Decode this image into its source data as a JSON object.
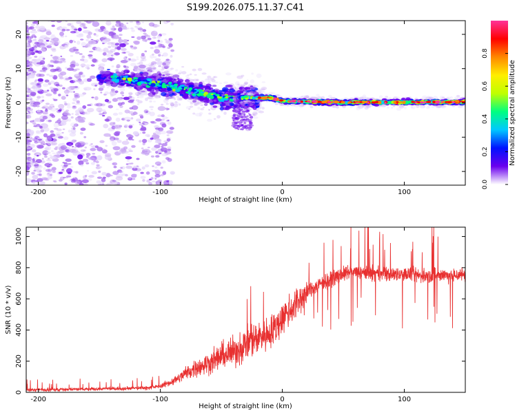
{
  "title": "S199.2026.075.11.37.C41",
  "colors": {
    "snr_line": "#e83030",
    "axis": "#000000",
    "colormap": [
      "#ffffff",
      "#e6d9fb",
      "#c9a6f3",
      "#9a55ec",
      "#6a00ee",
      "#0011ff",
      "#00c8ff",
      "#00ff80",
      "#bfff00",
      "#ffee00",
      "#ff8800",
      "#ff0000",
      "#ff3399"
    ]
  },
  "chart_data": [
    {
      "type": "heatmap",
      "title": "S199.2026.075.11.37.C41",
      "xlabel": "Height of straight line (km)",
      "ylabel": "Frequency (Hz)",
      "xlim": [
        -210,
        150
      ],
      "ylim": [
        -24,
        24
      ],
      "xticks": [
        -200,
        -100,
        0,
        100
      ],
      "xtick_labels": [
        "-200",
        "-100",
        "0",
        "100"
      ],
      "yticks": [
        20,
        10,
        0,
        -10,
        -20
      ],
      "ytick_labels": [
        "20",
        "10",
        "0",
        "-10",
        "-20"
      ],
      "colorbar": {
        "label": "Normalized spectral amplitude",
        "range": [
          0,
          1
        ],
        "ticks": [
          0.0,
          0.2,
          0.4,
          0.6,
          0.8
        ],
        "tick_labels": [
          "0.0",
          "0.2",
          "0.4",
          "0.6",
          "0.8"
        ]
      },
      "ridge": {
        "description_points_x": [
          -145,
          -110,
          -80,
          -50,
          -30,
          -10,
          0,
          50,
          100,
          150
        ],
        "description_points_y": [
          7.5,
          6,
          4,
          1.5,
          1.5,
          1.5,
          0.5,
          0.2,
          0.2,
          0.3
        ]
      }
    },
    {
      "type": "line",
      "title": "",
      "xlabel": "Height of straight line (km)",
      "ylabel": "SNR (10 * v/v)",
      "xlim": [
        -210,
        150
      ],
      "ylim": [
        0,
        1060
      ],
      "xticks": [
        -200,
        -100,
        0,
        100
      ],
      "xtick_labels": [
        "-200",
        "-100",
        "0",
        "100"
      ],
      "yticks": [
        0,
        200,
        400,
        600,
        800,
        1000
      ],
      "ytick_labels": [
        "0",
        "200",
        "400",
        "600",
        "800",
        "1000"
      ],
      "series": [
        {
          "name": "SNR",
          "x": [
            -210,
            -190,
            -170,
            -150,
            -130,
            -110,
            -100,
            -90,
            -85,
            -80,
            -70,
            -60,
            -50,
            -40,
            -30,
            -20,
            -10,
            -5,
            0,
            10,
            20,
            30,
            40,
            50,
            60,
            70,
            80,
            90,
            100,
            110,
            120,
            130,
            140,
            150
          ],
          "y": [
            15,
            18,
            20,
            22,
            25,
            30,
            40,
            70,
            90,
            120,
            160,
            190,
            230,
            260,
            310,
            360,
            380,
            420,
            480,
            560,
            640,
            690,
            730,
            760,
            770,
            765,
            760,
            755,
            760,
            750,
            745,
            755,
            750,
            760
          ]
        }
      ]
    }
  ]
}
